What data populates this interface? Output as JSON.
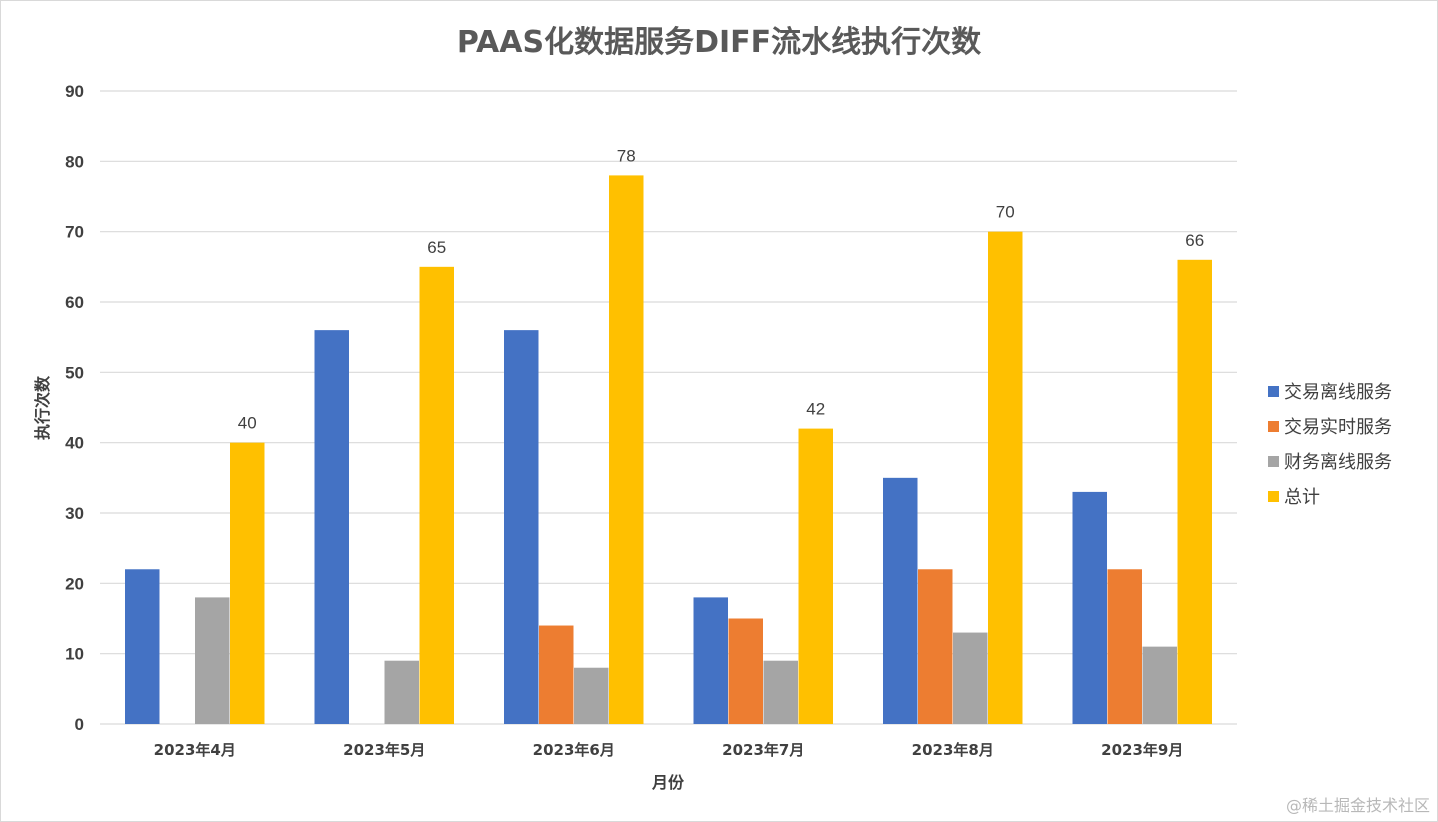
{
  "chart_data": {
    "type": "bar",
    "title": "PAAS化数据服务DIFF流水线执行次数",
    "xlabel": "月份",
    "ylabel": "执行次数",
    "ylim": [
      0,
      90
    ],
    "yticks": [
      0,
      10,
      20,
      30,
      40,
      50,
      60,
      70,
      80,
      90
    ],
    "grid": true,
    "legend_position": "right",
    "categories": [
      "2023年4月",
      "2023年5月",
      "2023年6月",
      "2023年7月",
      "2023年8月",
      "2023年9月"
    ],
    "series": [
      {
        "name": "交易离线服务",
        "color": "#4472c4",
        "values": [
          22,
          56,
          56,
          18,
          35,
          33
        ],
        "show_labels": false
      },
      {
        "name": "交易实时服务",
        "color": "#ed7d31",
        "values": [
          0,
          0,
          14,
          15,
          22,
          22
        ],
        "show_labels": false
      },
      {
        "name": "财务离线服务",
        "color": "#a5a5a5",
        "values": [
          18,
          9,
          8,
          9,
          13,
          11
        ],
        "show_labels": false
      },
      {
        "name": "总计",
        "color": "#ffc000",
        "values": [
          40,
          65,
          78,
          42,
          70,
          66
        ],
        "show_labels": true
      }
    ]
  },
  "watermark": "@稀土掘金技术社区"
}
